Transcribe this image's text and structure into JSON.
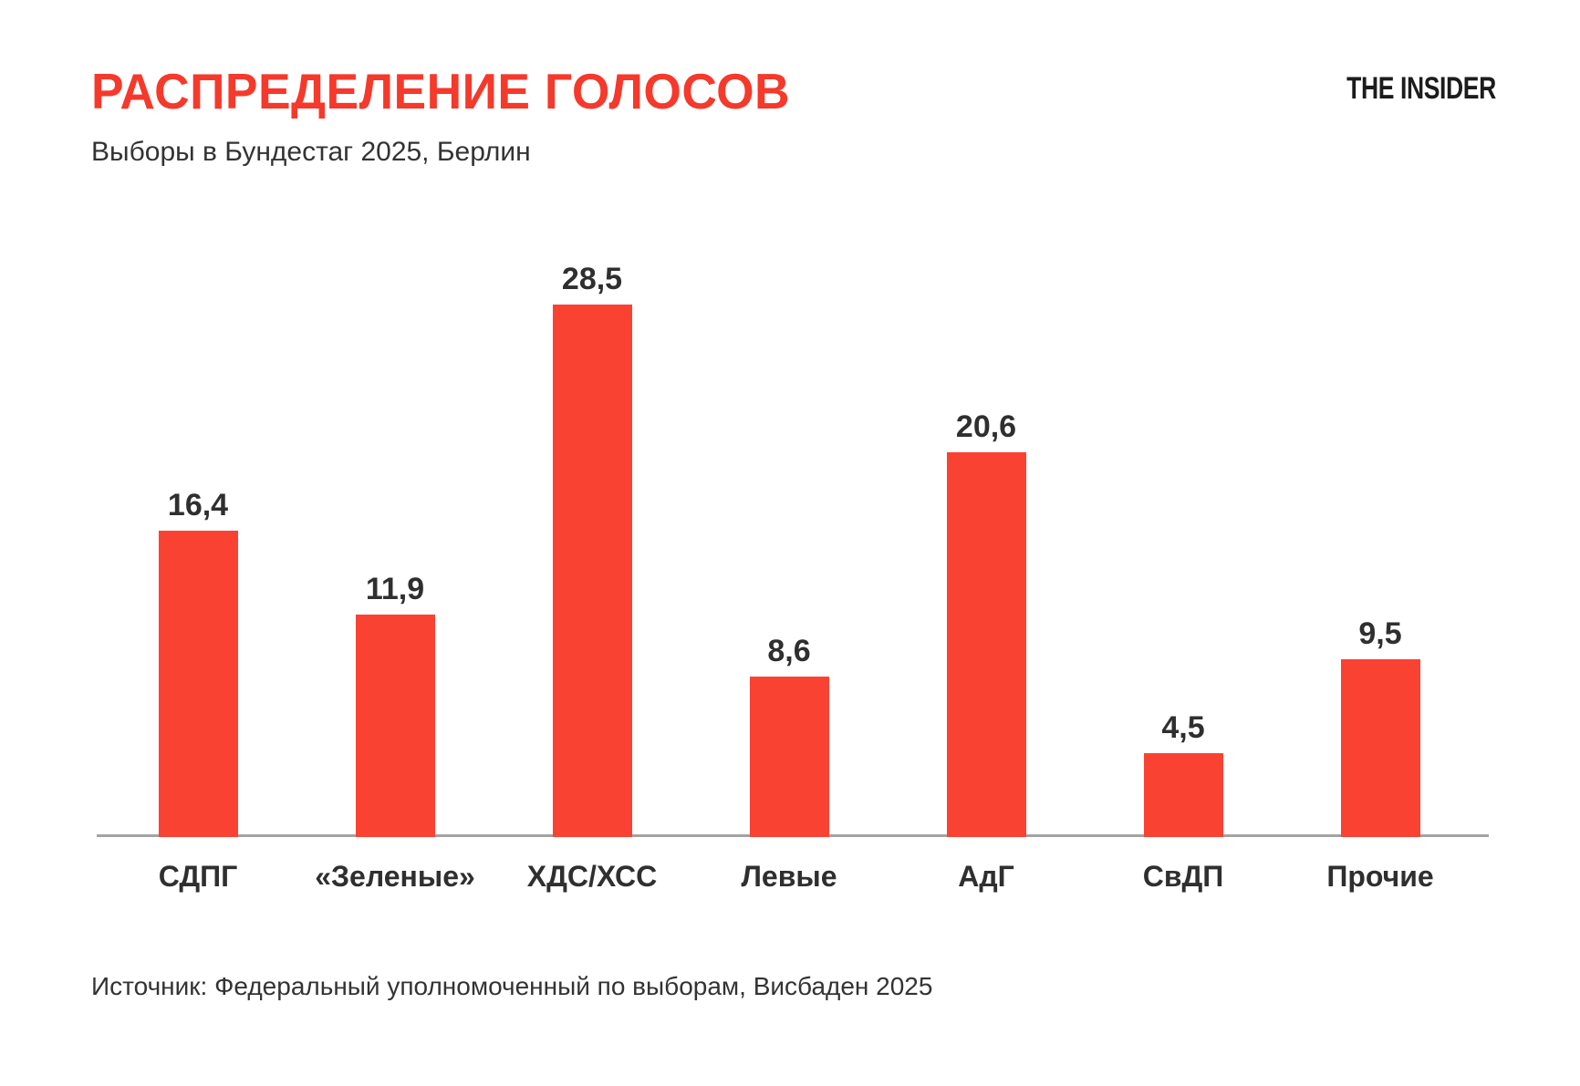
{
  "header": {
    "title": "РАСПРЕДЕЛЕНИЕ ГОЛОСОВ",
    "subtitle": "Выборы в Бундестаг 2025, Берлин",
    "logo": "THE INSIDER"
  },
  "chart_data": {
    "type": "bar",
    "title": "РАСПРЕДЕЛЕНИЕ ГОЛОСОВ",
    "subtitle": "Выборы в Бундестаг 2025, Берлин",
    "categories": [
      "СДПГ",
      "«Зеленые»",
      "ХДС/ХСС",
      "Левые",
      "АдГ",
      "СвДП",
      "Прочие"
    ],
    "values": [
      16.4,
      11.9,
      28.5,
      8.6,
      20.6,
      4.5,
      9.5
    ],
    "value_labels": [
      "16,4",
      "11,9",
      "28,5",
      "8,6",
      "20,6",
      "4,5",
      "9,5"
    ],
    "xlabel": "",
    "ylabel": "",
    "ylim": [
      0,
      30
    ],
    "grid": false,
    "legend": false,
    "unit": "percent",
    "bar_color": "#FA4233",
    "axis_line_color": "#A3A3A3",
    "value_label_color": "#2F2F2F",
    "category_label_color": "#2F2F2F"
  },
  "footer": {
    "source": "Источник: Федеральный уполномоченный по выборам, Висбаден 2025"
  },
  "colors": {
    "title_red": "#F5392B",
    "bar_red": "#FA4233",
    "text_dark": "#333333",
    "logo_black": "#1C1C1C",
    "background": "#FFFFFF"
  }
}
